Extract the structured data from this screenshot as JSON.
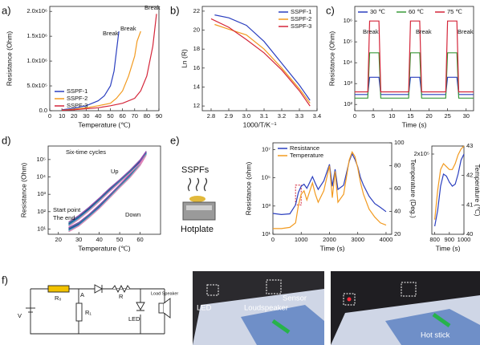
{
  "panel_labels": [
    "a)",
    "b)",
    "c)",
    "d)",
    "e)",
    "f)"
  ],
  "chart_data": [
    {
      "type": "line",
      "xlabel": "Temperature (℃)",
      "ylabel": "Resistance (Ohm)",
      "xlim": [
        0,
        90
      ],
      "xticks": [
        0,
        10,
        20,
        30,
        40,
        50,
        60,
        70,
        80,
        90
      ],
      "ylim": [
        0,
        2100000
      ],
      "yticks": [
        {
          "value": 0,
          "label": "0.0"
        },
        {
          "value": 500000,
          "label": "5.0x10⁵"
        },
        {
          "value": 1000000,
          "label": "1.0x10⁶"
        },
        {
          "value": 1500000,
          "label": "1.5x10⁶"
        },
        {
          "value": 2000000,
          "label": "2.0x10⁶"
        }
      ],
      "legend": "lower left",
      "series": [
        {
          "name": "SSPF-1",
          "color": "#2b3fbf",
          "x": [
            10,
            20,
            30,
            40,
            45,
            50,
            53,
            55,
            57
          ],
          "values": [
            20000,
            50000,
            100000,
            200000,
            300000,
            500000,
            800000,
            1200000,
            1600000
          ]
        },
        {
          "name": "SSPF-2",
          "color": "#f29a1f",
          "x": [
            10,
            20,
            30,
            40,
            50,
            55,
            60,
            65,
            70,
            72,
            75
          ],
          "values": [
            10000,
            30000,
            60000,
            100000,
            150000,
            250000,
            400000,
            700000,
            1100000,
            1400000,
            1600000
          ]
        },
        {
          "name": "SSPF-3",
          "color": "#d4263a",
          "x": [
            10,
            20,
            30,
            40,
            50,
            60,
            70,
            75,
            80,
            85,
            88
          ],
          "values": [
            10000,
            20000,
            40000,
            60000,
            100000,
            150000,
            250000,
            400000,
            700000,
            1300000,
            1950000
          ]
        }
      ],
      "annotations": [
        {
          "text": "Break",
          "color": "#2b3fbf"
        },
        {
          "text": "Break",
          "color": "#f29a1f"
        },
        {
          "text": "Break",
          "color": "#d4263a"
        }
      ]
    },
    {
      "type": "line",
      "xlabel": "1000/T/K⁻¹",
      "ylabel": "Ln (R)",
      "xlim": [
        2.75,
        3.4
      ],
      "xticks": [
        2.8,
        2.9,
        {
          "value": 3,
          "label": "3.0"
        },
        3.1,
        3.2,
        3.3,
        3.4
      ],
      "ylim": [
        11.5,
        22.5
      ],
      "yticks": [
        12,
        14,
        16,
        18,
        20,
        22
      ],
      "legend": "upper right",
      "series": [
        {
          "name": "SSPF-1",
          "color": "#2b3fbf",
          "x": [
            2.82,
            2.9,
            3.0,
            3.1,
            3.2,
            3.3,
            3.36
          ],
          "values": [
            21.6,
            21.3,
            20.5,
            18.8,
            16.5,
            14.2,
            12.6
          ]
        },
        {
          "name": "SSPF-2",
          "color": "#f29a1f",
          "x": [
            2.82,
            2.9,
            3.0,
            3.1,
            3.2,
            3.3,
            3.36
          ],
          "values": [
            20.6,
            20.1,
            19.5,
            18.0,
            16.0,
            13.8,
            12.3
          ]
        },
        {
          "name": "SSPF-3",
          "color": "#d4263a",
          "x": [
            2.8,
            2.9,
            3.0,
            3.1,
            3.2,
            3.3,
            3.36
          ],
          "values": [
            21.2,
            20.3,
            19.0,
            17.6,
            15.8,
            13.6,
            12.0
          ]
        }
      ]
    },
    {
      "type": "line",
      "xlabel": "Time (s)",
      "ylabel": "Resistance (Ohm)",
      "ylog": true,
      "xlim": [
        0,
        32
      ],
      "xticks": [
        0,
        5,
        10,
        15,
        20,
        25,
        30
      ],
      "ylim": [
        50,
        5000000
      ],
      "yticks": [
        {
          "value": 100,
          "label": "10²"
        },
        {
          "value": 1000,
          "label": "10³"
        },
        {
          "value": 10000,
          "label": "10⁴"
        },
        {
          "value": 100000,
          "label": "10⁵"
        },
        {
          "value": 1000000,
          "label": "10⁶"
        }
      ],
      "legend": "upper center",
      "series": [
        {
          "name": "30 ℃",
          "color": "#2b3fbf",
          "x": [
            0,
            3.5,
            4,
            5,
            6.5,
            7,
            14.5,
            15,
            16,
            17.5,
            18,
            24.5,
            25,
            26,
            27.5,
            28,
            32
          ],
          "values": [
            300,
            300,
            2000,
            2000,
            2000,
            300,
            300,
            2000,
            2000,
            2000,
            300,
            300,
            2000,
            2000,
            2000,
            300,
            300
          ]
        },
        {
          "name": "60 ℃",
          "color": "#3a9a3a",
          "x": [
            0,
            3.5,
            4,
            5,
            6.5,
            7,
            14.5,
            15,
            16,
            17.5,
            18,
            24.5,
            25,
            26,
            27.5,
            28,
            32
          ],
          "values": [
            200,
            200,
            30000,
            30000,
            30000,
            200,
            200,
            30000,
            30000,
            30000,
            200,
            200,
            30000,
            30000,
            30000,
            200,
            200
          ]
        },
        {
          "name": "75 ℃",
          "color": "#d4263a",
          "x": [
            0,
            3.5,
            4,
            5,
            6.5,
            7,
            14.5,
            15,
            16,
            17.5,
            18,
            24.5,
            25,
            26,
            27.5,
            28,
            32
          ],
          "values": [
            400,
            400,
            1000000,
            1000000,
            1000000,
            400,
            400,
            1000000,
            1000000,
            1000000,
            400,
            400,
            1000000,
            1000000,
            1000000,
            400,
            400
          ]
        }
      ],
      "annotations": [
        {
          "text": "Break",
          "color": "#d4263a"
        },
        {
          "text": "Break",
          "color": "#d4263a"
        },
        {
          "text": "Break",
          "color": "#d4263a"
        }
      ]
    },
    {
      "type": "line",
      "xlabel": "Temperature (℃)",
      "ylabel": "Resistance (Ohm)",
      "ylog": true,
      "xlim": [
        15,
        70
      ],
      "xticks": [
        20,
        30,
        40,
        50,
        60
      ],
      "ylim": [
        5,
        600000
      ],
      "yticks": [
        {
          "value": 10,
          "label": "10¹"
        },
        {
          "value": 100,
          "label": "10²"
        },
        {
          "value": 1000,
          "label": "10³"
        },
        {
          "value": 10000,
          "label": "10⁴"
        },
        {
          "value": 100000,
          "label": "10⁵"
        }
      ],
      "series": [
        {
          "color": "#1f2a7a",
          "x": [
            25,
            30,
            35,
            40,
            45,
            50,
            55,
            60,
            63,
            60,
            55,
            50,
            45,
            40,
            35,
            30,
            25
          ],
          "values": [
            20,
            50,
            150,
            500,
            1800,
            6000,
            20000,
            80000,
            250000,
            60000,
            12000,
            3000,
            800,
            200,
            60,
            20,
            10
          ]
        },
        {
          "color": "#3050c0",
          "x": [
            25,
            30,
            35,
            40,
            45,
            50,
            55,
            60,
            63,
            60,
            55,
            50,
            45,
            40,
            35,
            30,
            25
          ],
          "values": [
            18,
            45,
            130,
            450,
            1600,
            5500,
            18000,
            70000,
            220000,
            55000,
            11000,
            2800,
            700,
            180,
            55,
            18,
            9
          ]
        },
        {
          "color": "#2a9d8f",
          "x": [
            25,
            30,
            35,
            40,
            45,
            50,
            55,
            60,
            63,
            60,
            55,
            50,
            45,
            40,
            35,
            30,
            25
          ],
          "values": [
            22,
            55,
            170,
            560,
            2000,
            6500,
            22000,
            90000,
            280000,
            65000,
            13000,
            3200,
            850,
            220,
            65,
            22,
            11
          ]
        },
        {
          "color": "#48c9b0",
          "x": [
            25,
            30,
            35,
            40,
            45,
            50,
            55,
            60,
            63,
            60,
            55,
            50,
            45,
            40,
            35,
            30,
            25
          ],
          "values": [
            16,
            40,
            120,
            420,
            1500,
            5000,
            17000,
            65000,
            200000,
            50000,
            10000,
            2600,
            650,
            160,
            50,
            16,
            8
          ]
        },
        {
          "color": "#8e44ad",
          "x": [
            25,
            30,
            35,
            40,
            45,
            50,
            55,
            60,
            63,
            60,
            55,
            50,
            45,
            40,
            35,
            30,
            25
          ],
          "values": [
            25,
            60,
            180,
            600,
            2200,
            7000,
            24000,
            95000,
            300000,
            70000,
            14000,
            3500,
            900,
            240,
            70,
            24,
            12
          ]
        },
        {
          "color": "#e384b8",
          "x": [
            25,
            30,
            35,
            40,
            45,
            50,
            55,
            60,
            63,
            60,
            55,
            50,
            45,
            40,
            35,
            30,
            25
          ],
          "values": [
            14,
            36,
            110,
            380,
            1400,
            4700,
            16000,
            60000,
            180000,
            45000,
            9000,
            2400,
            600,
            150,
            45,
            15,
            7
          ]
        }
      ],
      "annotations": [
        {
          "text": "Six-time cycles",
          "color": "#111111"
        },
        {
          "text": "Start point",
          "color": "#111111"
        },
        {
          "text": "The end",
          "color": "#111111"
        },
        {
          "text": "Up",
          "color": "#f29a1f"
        },
        {
          "text": "Down",
          "color": "#d4263a"
        }
      ]
    },
    {
      "type": "line",
      "xlabel": "Time (s)",
      "ylabel": "Resistance (ohm)",
      "y2label": "Temperature (Deg.)",
      "ylog": true,
      "xlim": [
        0,
        4200
      ],
      "xticks": [
        0,
        1000,
        2000,
        3000,
        4000
      ],
      "ylim": [
        10,
        30000000
      ],
      "yticks": [
        {
          "value": 10,
          "label": "10¹"
        },
        {
          "value": 1000,
          "label": "10³"
        },
        {
          "value": 100000,
          "label": "10⁵"
        },
        {
          "value": 10000000,
          "label": "10⁷"
        }
      ],
      "y2lim": [
        20,
        100
      ],
      "y2ticks": [
        20,
        40,
        60,
        80,
        100
      ],
      "legend": "upper left",
      "series": [
        {
          "name": "Resistance",
          "color": "#2b3fbf",
          "x": [
            0,
            300,
            600,
            800,
            900,
            1000,
            1100,
            1200,
            1400,
            1500,
            1600,
            1800,
            2000,
            2100,
            2200,
            2300,
            2500,
            2700,
            2800,
            2900,
            3000,
            3100,
            3200,
            3400,
            3600,
            3800,
            4000
          ],
          "values": [
            300,
            250,
            280,
            1200,
            9000,
            25000,
            35000,
            18000,
            120000,
            40000,
            15000,
            60000,
            900000,
            25000,
            400000,
            15000,
            30000,
            1500000,
            5000000,
            2000000,
            600000,
            100000,
            30000,
            5000,
            1500,
            800,
            400
          ]
        },
        {
          "name": "Temperature",
          "color": "#f29a1f",
          "axis": "y2",
          "x": [
            0,
            300,
            600,
            800,
            900,
            1000,
            1100,
            1200,
            1400,
            1500,
            1600,
            1800,
            2000,
            2100,
            2200,
            2300,
            2500,
            2700,
            2800,
            2900,
            3000,
            3100,
            3200,
            3400,
            3600,
            3800,
            4000
          ],
          "values": [
            25,
            25,
            26,
            30,
            45,
            55,
            58,
            50,
            65,
            55,
            48,
            58,
            80,
            52,
            75,
            48,
            55,
            85,
            92,
            88,
            78,
            65,
            55,
            42,
            35,
            30,
            28
          ]
        }
      ]
    },
    {
      "type": "line",
      "xlabel": "Time (s)",
      "y2label": "Temperature (℃)",
      "xlim": [
        780,
        1000
      ],
      "xticks": [
        800,
        900,
        1000
      ],
      "ylim": [
        0,
        220000
      ],
      "yticks": [
        {
          "value": 200000,
          "label": "2x10⁵"
        }
      ],
      "y2lim": [
        40,
        43
      ],
      "y2ticks": [
        40,
        41,
        42,
        43
      ],
      "series": [
        {
          "color": "#2b3fbf",
          "x": [
            800,
            820,
            840,
            860,
            880,
            900,
            920,
            940,
            960,
            980,
            1000
          ],
          "values": [
            20000,
            60000,
            120000,
            150000,
            145000,
            130000,
            120000,
            125000,
            150000,
            185000,
            200000
          ]
        },
        {
          "color": "#f29a1f",
          "axis": "y2",
          "x": [
            800,
            820,
            840,
            860,
            880,
            900,
            920,
            940,
            960,
            980,
            1000
          ],
          "values": [
            40.5,
            41.5,
            42.2,
            42.4,
            42.3,
            42.2,
            42.2,
            42.4,
            42.7,
            42.9,
            43.0
          ]
        }
      ]
    }
  ],
  "schematic": {
    "labels": [
      "SSPFs",
      "Hotplate"
    ]
  },
  "circuit": {
    "labels": [
      "V",
      "R₀",
      "A",
      "R₁",
      "R",
      "LED",
      "Load Speaker"
    ]
  },
  "photos": {
    "labels": [
      "LED",
      "Loudspeaker",
      "Sensor",
      "Hot stick"
    ]
  }
}
